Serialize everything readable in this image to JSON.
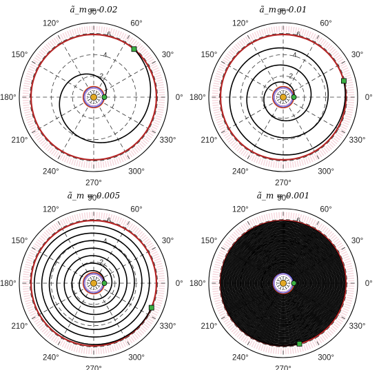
{
  "chart_data": [
    {
      "type": "polar",
      "title": "ã_m = 0.02",
      "rlim": [
        0,
        7
      ],
      "r_ticks": [
        2,
        4,
        6
      ],
      "angle_ticks": [
        0,
        30,
        60,
        90,
        120,
        150,
        180,
        210,
        240,
        270,
        300,
        330
      ],
      "angle_labels": [
        "0°",
        "30°",
        "60°",
        "90°",
        "120°",
        "150°",
        "180°",
        "210°",
        "240°",
        "270°",
        "300°",
        "330°"
      ],
      "series": [
        {
          "type": "circle",
          "r": 1.0,
          "color": "#d4451d"
        },
        {
          "type": "circle",
          "r": 5.9,
          "color": "#b22222"
        },
        {
          "type": "spiral",
          "r_start": 1.0,
          "r_end": 5.9,
          "theta_start": 0,
          "theta_end": 410,
          "color": "#000000"
        }
      ],
      "start_marker": {
        "r": 1.0,
        "theta": 0,
        "color": "#3cb043"
      },
      "end_marker": {
        "r": 5.9,
        "theta": 50,
        "color": "#3cb043"
      },
      "central_body": {
        "color": "#e2a823"
      }
    },
    {
      "type": "polar",
      "title": "ã_m = 0.01",
      "rlim": [
        0,
        7
      ],
      "r_ticks": [
        2,
        4,
        6
      ],
      "angle_ticks": [
        0,
        30,
        60,
        90,
        120,
        150,
        180,
        210,
        240,
        270,
        300,
        330
      ],
      "angle_labels": [
        "0°",
        "30°",
        "60°",
        "90°",
        "120°",
        "150°",
        "180°",
        "210°",
        "240°",
        "270°",
        "300°",
        "330°"
      ],
      "series": [
        {
          "type": "circle",
          "r": 1.0,
          "color": "#d4451d"
        },
        {
          "type": "circle",
          "r": 5.9,
          "color": "#b22222"
        },
        {
          "type": "spiral",
          "r_start": 1.0,
          "r_end": 5.9,
          "theta_start": 0,
          "theta_end": 1095,
          "color": "#000000"
        }
      ],
      "start_marker": {
        "r": 1.0,
        "theta": 0,
        "color": "#3cb043"
      },
      "end_marker": {
        "r": 5.9,
        "theta": 15,
        "color": "#3cb043"
      },
      "central_body": {
        "color": "#e2a823"
      }
    },
    {
      "type": "polar",
      "title": "ã_m = 0.005",
      "rlim": [
        0,
        7
      ],
      "r_ticks": [
        2,
        4,
        6
      ],
      "angle_ticks": [
        0,
        30,
        60,
        90,
        120,
        150,
        180,
        210,
        240,
        270,
        300,
        330
      ],
      "angle_labels": [
        "0°",
        "30°",
        "60°",
        "90°",
        "120°",
        "150°",
        "180°",
        "210°",
        "240°",
        "270°",
        "300°",
        "330°"
      ],
      "series": [
        {
          "type": "circle",
          "r": 1.0,
          "color": "#d4451d"
        },
        {
          "type": "circle",
          "r": 5.9,
          "color": "#b22222"
        },
        {
          "type": "spiral",
          "r_start": 1.0,
          "r_end": 5.9,
          "theta_start": 0,
          "theta_end": 2497,
          "color": "#000000"
        }
      ],
      "start_marker": {
        "r": 1.0,
        "theta": 0,
        "color": "#3cb043"
      },
      "end_marker": {
        "r": 5.9,
        "theta": 337,
        "color": "#3cb043"
      },
      "central_body": {
        "color": "#e2a823"
      }
    },
    {
      "type": "polar",
      "title": "ã_m = 0.001",
      "rlim": [
        0,
        7
      ],
      "r_ticks": [
        2,
        4,
        6
      ],
      "angle_ticks": [
        0,
        30,
        60,
        90,
        120,
        150,
        180,
        210,
        240,
        270,
        300,
        330
      ],
      "angle_labels": [
        "0°",
        "30°",
        "60°",
        "90°",
        "120°",
        "150°",
        "180°",
        "210°",
        "240°",
        "270°",
        "300°",
        "330°"
      ],
      "series": [
        {
          "type": "circle",
          "r": 1.0,
          "color": "#d4451d"
        },
        {
          "type": "circle",
          "r": 5.9,
          "color": "#b22222"
        },
        {
          "type": "spiral",
          "r_start": 1.0,
          "r_end": 5.9,
          "theta_start": 0,
          "theta_end": 15765,
          "color": "#000000"
        }
      ],
      "start_marker": {
        "r": 1.0,
        "theta": 0,
        "color": "#3cb043"
      },
      "end_marker": {
        "r": 5.9,
        "theta": 285,
        "color": "#3cb043"
      },
      "central_body": {
        "color": "#e2a823"
      }
    }
  ]
}
